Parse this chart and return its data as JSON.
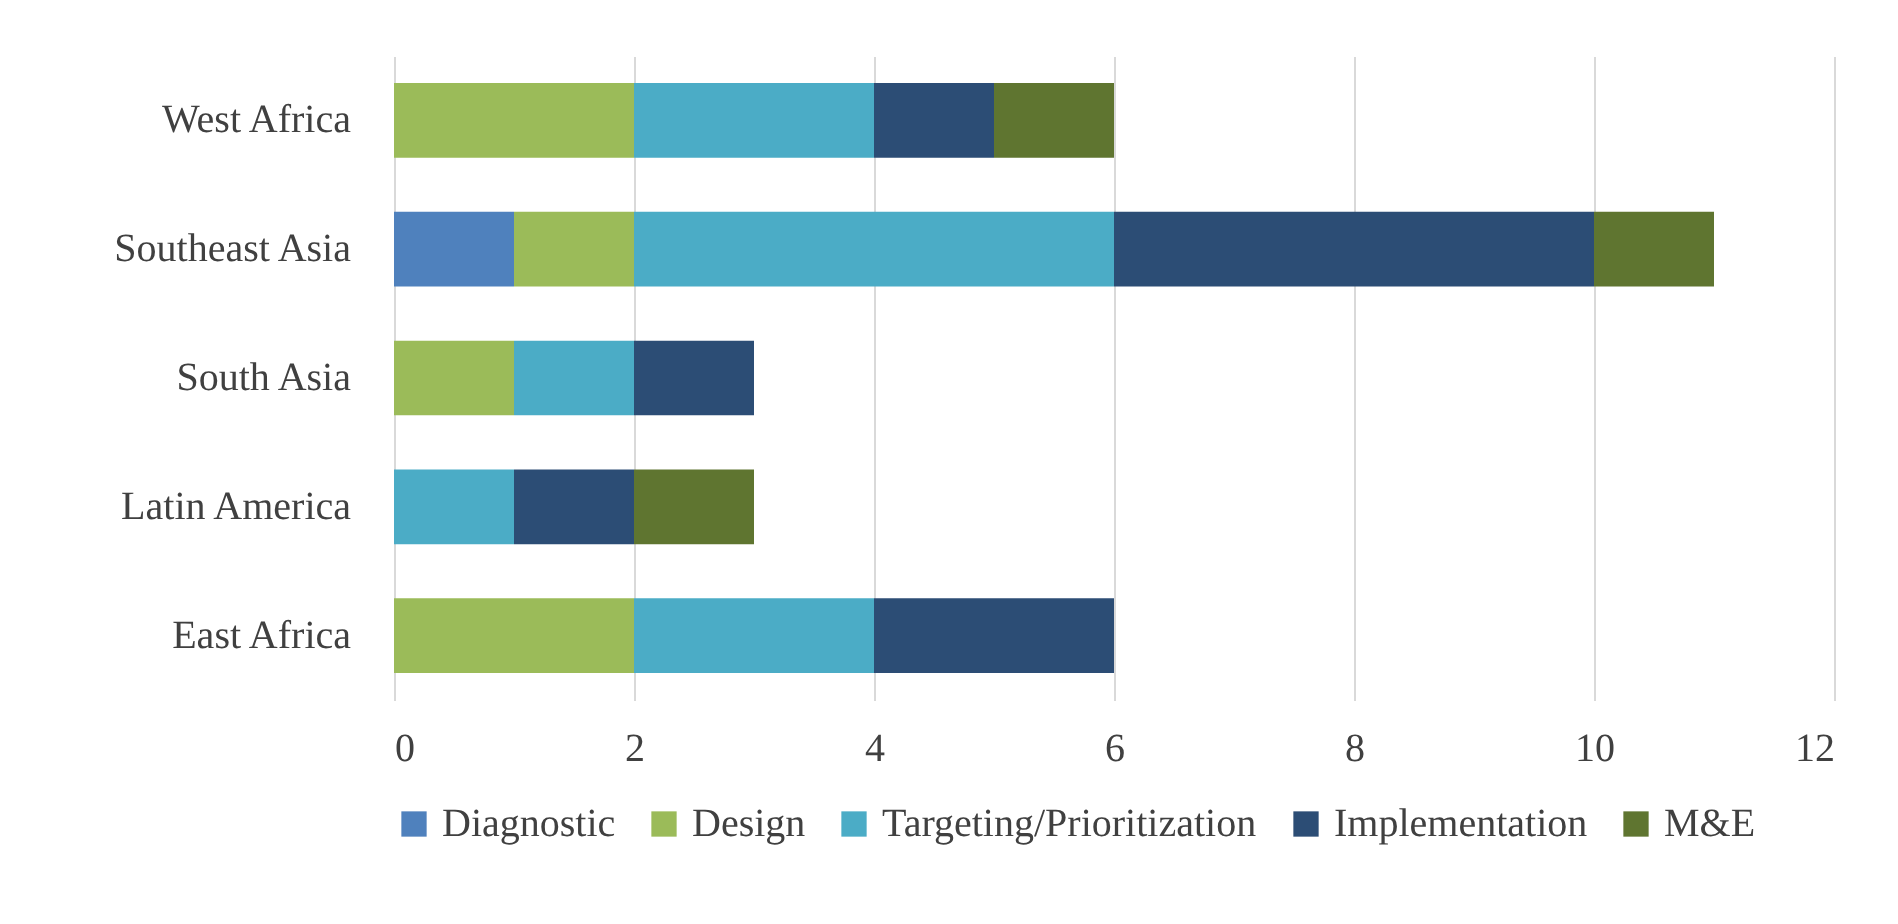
{
  "chart_data": {
    "type": "bar",
    "orientation": "horizontal",
    "stacked": true,
    "categories": [
      "West Africa",
      "Southeast Asia",
      "South Asia",
      "Latin America",
      "East Africa"
    ],
    "series": [
      {
        "name": "Diagnostic",
        "color": "#4f81bd",
        "values": [
          0,
          1,
          0,
          0,
          0
        ]
      },
      {
        "name": "Design",
        "color": "#9bbb59",
        "values": [
          2,
          1,
          1,
          0,
          2
        ]
      },
      {
        "name": "Targeting/Prioritization",
        "color": "#4bacc6",
        "values": [
          2,
          4,
          1,
          1,
          2
        ]
      },
      {
        "name": "Implementation",
        "color": "#2c4d75",
        "values": [
          1,
          4,
          1,
          1,
          2
        ]
      },
      {
        "name": "M&E",
        "color": "#5f7530",
        "values": [
          1,
          1,
          0,
          1,
          0
        ]
      }
    ],
    "xlim": [
      0,
      12
    ],
    "xticks": [
      0,
      2,
      4,
      6,
      8,
      10,
      12
    ],
    "grid": "x",
    "legend": "bottom"
  }
}
